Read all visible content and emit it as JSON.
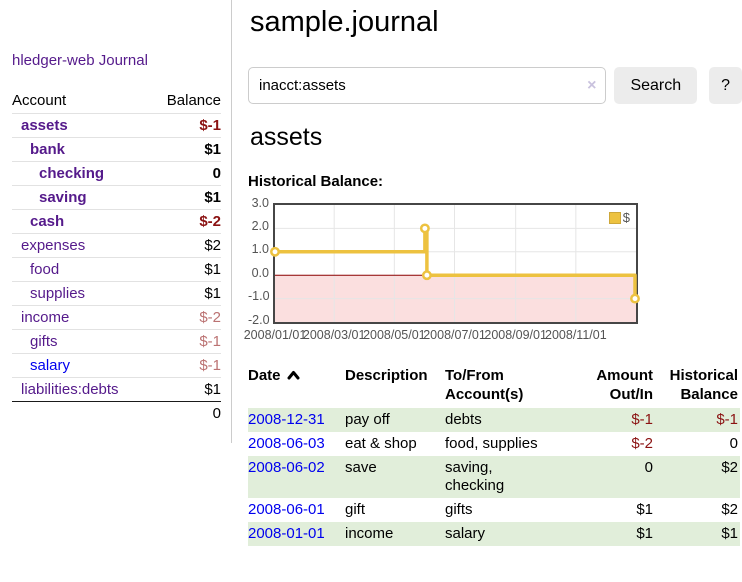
{
  "app": {
    "title": "hledger-web"
  },
  "colors": {
    "link_visited_purple": "#551A8B",
    "link_blue": "#0000EE",
    "negative_red": "#8b1212",
    "negative_muted_red": "#bb7272",
    "row_stripe_green": "#e1eeda",
    "chart_line_yellow": "#EDC240",
    "zero_line_red": "#8b0000",
    "negative_region_pink": "#fbdfdf"
  },
  "sidebar": {
    "journal_link": "Journal",
    "table_headers": {
      "account": "Account",
      "balance": "Balance"
    },
    "accounts": [
      {
        "name": "assets",
        "balance": "$-1",
        "depth": 0,
        "in_query": true,
        "balance_class": "neg-strong"
      },
      {
        "name": "bank",
        "balance": "$1",
        "depth": 1,
        "in_query": true,
        "balance_class": ""
      },
      {
        "name": "checking",
        "balance": "0",
        "depth": 2,
        "in_query": true,
        "balance_class": ""
      },
      {
        "name": "saving",
        "balance": "$1",
        "depth": 2,
        "in_query": true,
        "balance_class": ""
      },
      {
        "name": "cash",
        "balance": "$-2",
        "depth": 1,
        "in_query": true,
        "balance_class": "neg-strong"
      },
      {
        "name": "expenses",
        "balance": "$2",
        "depth": 0,
        "in_query": false,
        "balance_class": ""
      },
      {
        "name": "food",
        "balance": "$1",
        "depth": 1,
        "in_query": false,
        "balance_class": ""
      },
      {
        "name": "supplies",
        "balance": "$1",
        "depth": 1,
        "in_query": false,
        "balance_class": ""
      },
      {
        "name": "income",
        "balance": "$-2",
        "depth": 0,
        "in_query": false,
        "balance_class": "neg-muted"
      },
      {
        "name": "gifts",
        "balance": "$-1",
        "depth": 1,
        "in_query": false,
        "balance_class": "neg-muted"
      },
      {
        "name": "salary",
        "balance": "$-1",
        "depth": 1,
        "in_query": false,
        "balance_class": "neg-muted",
        "link_unvisited": true
      },
      {
        "name": "liabilities:debts",
        "balance": "$1",
        "depth": 0,
        "in_query": false,
        "balance_class": ""
      }
    ],
    "total": "0"
  },
  "header": {
    "title": "sample.journal"
  },
  "search": {
    "value": "inacct:assets",
    "clear_icon": "×",
    "search_button": "Search",
    "help_button": "?"
  },
  "account_page": {
    "heading": "assets",
    "chart_label": "Historical Balance:"
  },
  "chart_data": {
    "type": "line",
    "title": "Historical Balance:",
    "step": true,
    "series": [
      {
        "name": "$",
        "color": "#EDC240",
        "points": [
          {
            "date": "2008-01-01",
            "value": 1
          },
          {
            "date": "2008-06-01",
            "value": 2
          },
          {
            "date": "2008-06-03",
            "value": 0
          },
          {
            "date": "2008-12-31",
            "value": -1
          }
        ]
      }
    ],
    "x_range": [
      "2008-01-01",
      "2008-12-31"
    ],
    "y_lim": [
      -2,
      3
    ],
    "y_ticks": [
      "3.0",
      "2.0",
      "1.0",
      "0.0",
      "-1.0",
      "-2.0"
    ],
    "x_tick_dates": [
      "2008-01-01",
      "2008-03-01",
      "2008-05-01",
      "2008-07-01",
      "2008-09-01",
      "2008-11-01"
    ],
    "x_tick_labels": [
      "2008/01/01",
      "2008/03/01",
      "2008/05/01",
      "2008/07/01",
      "2008/09/01",
      "2008/11/01"
    ],
    "grid": true,
    "legend_position": "top-right",
    "negative_region_color": "#fbdfdf",
    "zero_line_color": "#8b0000",
    "grid_color": "#e6e6e6"
  },
  "transactions": {
    "headers": [
      {
        "label": "Date",
        "sorted_asc": true
      },
      {
        "label": "Description"
      },
      {
        "label": "To/From Account(s)"
      },
      {
        "label": "Amount Out/In"
      },
      {
        "label": "Historical Balance"
      }
    ],
    "rows": [
      {
        "date": "2008-12-31",
        "description": "pay off",
        "accounts": "debts",
        "amount": "$-1",
        "amount_negative": true,
        "balance": "$-1",
        "balance_negative": true
      },
      {
        "date": "2008-06-03",
        "description": "eat & shop",
        "accounts": "food, supplies",
        "amount": "$-2",
        "amount_negative": true,
        "balance": "0",
        "balance_negative": false
      },
      {
        "date": "2008-06-02",
        "description": "save",
        "accounts": "saving, checking",
        "amount": "0",
        "amount_negative": false,
        "balance": "$2",
        "balance_negative": false
      },
      {
        "date": "2008-06-01",
        "description": "gift",
        "accounts": "gifts",
        "amount": "$1",
        "amount_negative": false,
        "balance": "$2",
        "balance_negative": false
      },
      {
        "date": "2008-01-01",
        "description": "income",
        "accounts": "salary",
        "amount": "$1",
        "amount_negative": false,
        "balance": "$1",
        "balance_negative": false
      }
    ]
  }
}
